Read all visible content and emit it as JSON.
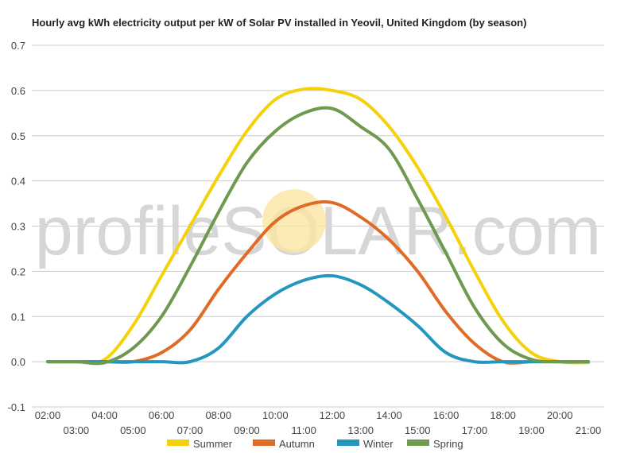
{
  "chart_data": {
    "type": "line",
    "title": "Hourly avg kWh electricity output per kW of Solar PV installed in Yeovil, United Kingdom (by season)",
    "watermark": "profileSOLAR.com",
    "xlabel": "",
    "ylabel": "",
    "x": [
      "02:00",
      "03:00",
      "04:00",
      "05:00",
      "06:00",
      "07:00",
      "08:00",
      "09:00",
      "10:00",
      "11:00",
      "12:00",
      "13:00",
      "14:00",
      "15:00",
      "16:00",
      "17:00",
      "18:00",
      "19:00",
      "20:00",
      "21:00"
    ],
    "x_ticks_upper": [
      "02:00",
      "04:00",
      "06:00",
      "08:00",
      "10:00",
      "12:00",
      "14:00",
      "16:00",
      "18:00",
      "20:00"
    ],
    "x_ticks_lower": [
      "03:00",
      "05:00",
      "07:00",
      "09:00",
      "11:00",
      "13:00",
      "15:00",
      "17:00",
      "19:00",
      "21:00"
    ],
    "y_ticks": [
      "0.7",
      "0.6",
      "0.5",
      "0.4",
      "0.3",
      "0.2",
      "0.1",
      "0.0",
      "-0.1"
    ],
    "ylim": [
      -0.1,
      0.7
    ],
    "grid": true,
    "legend_position": "bottom",
    "series": [
      {
        "name": "Summer",
        "color": "#f5d10c",
        "values": [
          0.0,
          0.0,
          0.005,
          0.08,
          0.19,
          0.3,
          0.41,
          0.51,
          0.58,
          0.603,
          0.6,
          0.58,
          0.52,
          0.43,
          0.32,
          0.2,
          0.09,
          0.02,
          0.0,
          -0.002
        ]
      },
      {
        "name": "Autumn",
        "color": "#e06b26",
        "values": [
          0.0,
          0.0,
          0.0,
          0.0,
          0.02,
          0.07,
          0.16,
          0.24,
          0.31,
          0.345,
          0.352,
          0.32,
          0.27,
          0.2,
          0.11,
          0.04,
          0.0,
          0.0,
          0.0,
          0.0
        ]
      },
      {
        "name": "Winter",
        "color": "#2596be",
        "values": [
          0.0,
          0.0,
          0.0,
          0.0,
          0.0,
          0.0,
          0.03,
          0.1,
          0.15,
          0.18,
          0.19,
          0.17,
          0.13,
          0.08,
          0.02,
          0.0,
          0.0,
          0.0,
          0.0,
          0.0
        ]
      },
      {
        "name": "Spring",
        "color": "#6e9a4f",
        "values": [
          0.0,
          0.0,
          -0.002,
          0.03,
          0.1,
          0.21,
          0.33,
          0.44,
          0.51,
          0.55,
          0.56,
          0.52,
          0.47,
          0.36,
          0.24,
          0.12,
          0.04,
          0.005,
          0.0,
          0.0
        ]
      }
    ]
  }
}
